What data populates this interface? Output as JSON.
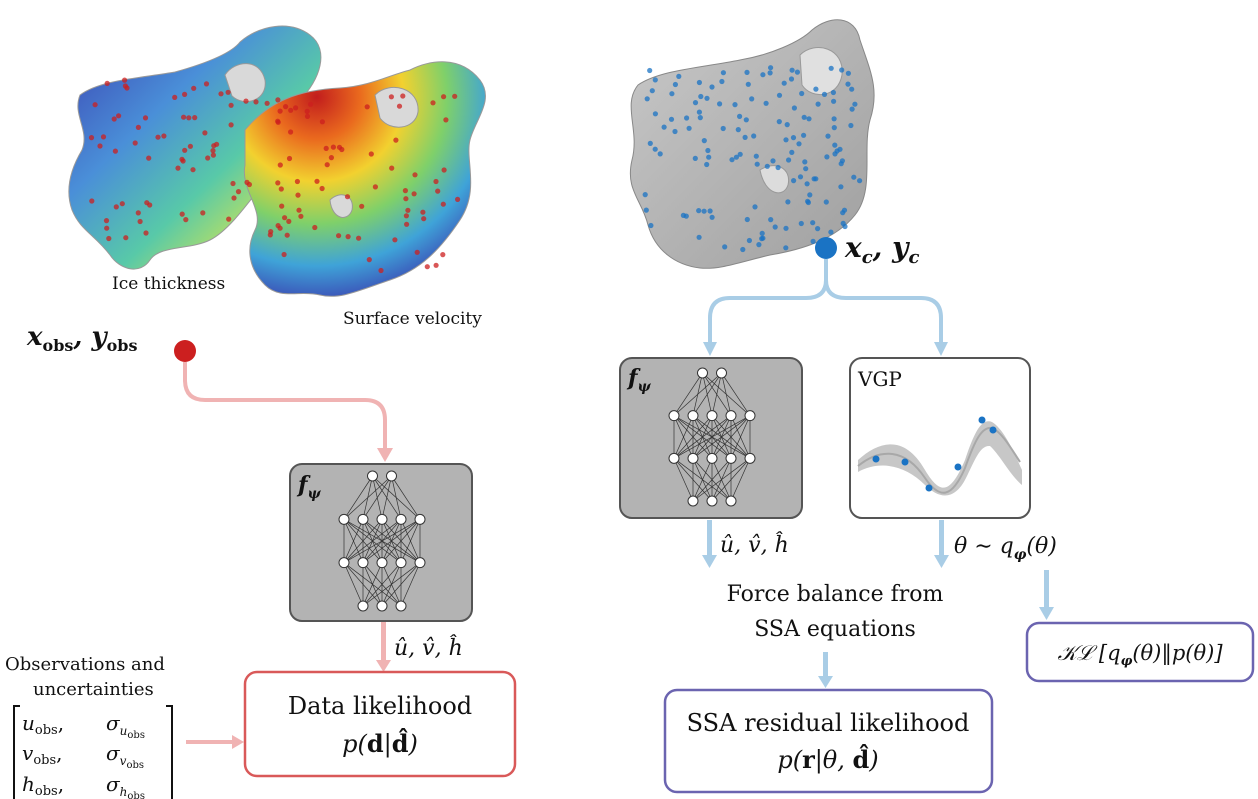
{
  "maps": {
    "ice_thickness_label": "Ice thickness",
    "surface_velocity_label": "Surface velocity",
    "obs_coords_label": "x_obs, y_obs",
    "colloc_coords_label": "x_c, y_c",
    "colors": {
      "obs_point": "#cc1f1f",
      "colloc_point": "#1a73c4",
      "obs_arrow": "#f0b3b3",
      "colloc_arrow": "#a9cde6",
      "map_gray": "#b3b3b3"
    }
  },
  "left_branch": {
    "network_label": "f_ψ",
    "network_layers": [
      2,
      5,
      5,
      3
    ],
    "output_label": "û, v̂, ĥ",
    "observations_label_line1": "Observations and",
    "observations_label_line2": "uncertainties",
    "matrix_rows": [
      [
        "u_obs,",
        "σ_{u_obs}"
      ],
      [
        "v_obs,",
        "σ_{v_obs}"
      ],
      [
        "h_obs,",
        "σ_{h_obs}"
      ]
    ],
    "likelihood_title": "Data likelihood",
    "likelihood_formula": "p(d|d̂)",
    "likelihood_border": "#d95959"
  },
  "right_branch": {
    "network_label": "f_ψ",
    "network_layers": [
      2,
      5,
      5,
      3
    ],
    "vgp_title": "VGP",
    "output_label": "û, v̂, ĥ",
    "theta_label": "θ ∼ q_φ(θ)",
    "force_balance_line1": "Force balance from",
    "force_balance_line2": "SSA equations",
    "residual_title": "SSA residual likelihood",
    "residual_formula": "p(r|θ, d̂)",
    "kl_formula": "𝒦ℒ [q_φ(θ)‖p(θ)]",
    "box_border": "#6b64b0"
  }
}
